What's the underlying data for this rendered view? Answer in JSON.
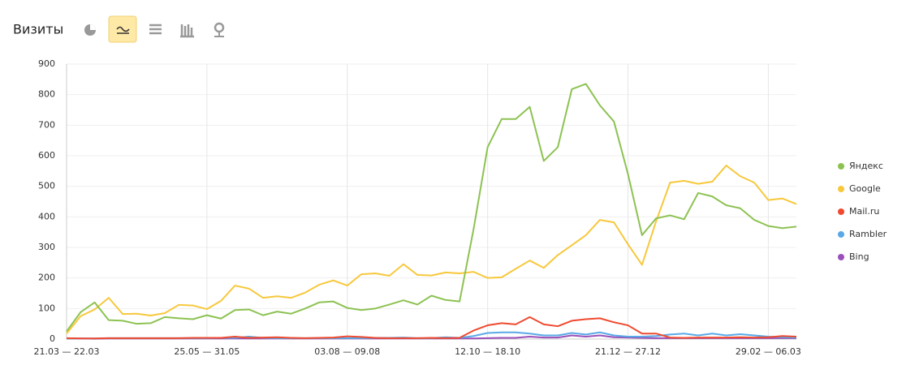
{
  "header": {
    "title": "Визиты"
  },
  "chart_data": {
    "type": "line",
    "categories": [
      "21.03 — 22.03",
      null,
      null,
      null,
      null,
      null,
      null,
      null,
      null,
      null,
      "25.05 — 31.05",
      null,
      null,
      null,
      null,
      null,
      null,
      null,
      null,
      null,
      "03.08 — 09.08",
      null,
      null,
      null,
      null,
      null,
      null,
      null,
      null,
      null,
      "12.10 — 18.10",
      null,
      null,
      null,
      null,
      null,
      null,
      null,
      null,
      null,
      "21.12 — 27.12",
      null,
      null,
      null,
      null,
      null,
      null,
      null,
      null,
      null,
      "29.02 — 06.03",
      null,
      null
    ],
    "series": [
      {
        "name": "Яндекс",
        "color": "#8dc252",
        "values": [
          25,
          88,
          120,
          62,
          60,
          50,
          52,
          72,
          68,
          65,
          78,
          67,
          95,
          97,
          78,
          90,
          83,
          100,
          120,
          123,
          102,
          95,
          100,
          113,
          127,
          113,
          142,
          128,
          123,
          360,
          628,
          720,
          720,
          760,
          583,
          628,
          818,
          835,
          765,
          712,
          540,
          340,
          395,
          405,
          392,
          478,
          467,
          438,
          428,
          390,
          370,
          363,
          368
        ]
      },
      {
        "name": "Google",
        "color": "#f7c83c",
        "values": [
          18,
          75,
          97,
          135,
          82,
          83,
          77,
          85,
          112,
          110,
          98,
          125,
          175,
          165,
          135,
          140,
          135,
          152,
          178,
          192,
          175,
          212,
          215,
          207,
          245,
          210,
          208,
          218,
          215,
          220,
          200,
          202,
          230,
          257,
          233,
          275,
          307,
          340,
          390,
          382,
          310,
          243,
          385,
          512,
          518,
          508,
          515,
          568,
          533,
          512,
          455,
          460,
          442
        ]
      },
      {
        "name": "Mail.ru",
        "color": "#ef4a2f",
        "values": [
          3,
          2,
          2,
          3,
          3,
          3,
          3,
          3,
          3,
          4,
          4,
          4,
          8,
          4,
          5,
          6,
          4,
          3,
          4,
          5,
          9,
          7,
          4,
          3,
          3,
          3,
          4,
          3,
          4,
          28,
          45,
          52,
          48,
          72,
          48,
          42,
          60,
          65,
          68,
          55,
          45,
          18,
          18,
          5,
          4,
          5,
          5,
          5,
          6,
          5,
          6,
          10,
          8
        ]
      },
      {
        "name": "Rambler",
        "color": "#5aa9e6",
        "values": [
          2,
          2,
          2,
          3,
          3,
          3,
          3,
          3,
          3,
          3,
          3,
          4,
          4,
          8,
          4,
          3,
          3,
          3,
          3,
          3,
          3,
          3,
          4,
          4,
          5,
          3,
          3,
          6,
          4,
          10,
          20,
          22,
          22,
          18,
          12,
          12,
          20,
          15,
          22,
          12,
          8,
          8,
          10,
          15,
          18,
          12,
          18,
          12,
          16,
          12,
          8,
          6,
          5
        ]
      },
      {
        "name": "Bing",
        "color": "#9b4fb8",
        "values": [
          2,
          2,
          1,
          2,
          2,
          2,
          2,
          2,
          2,
          2,
          2,
          2,
          2,
          2,
          2,
          2,
          2,
          2,
          2,
          2,
          2,
          2,
          2,
          2,
          2,
          2,
          2,
          2,
          2,
          2,
          3,
          4,
          4,
          8,
          5,
          5,
          12,
          8,
          12,
          6,
          5,
          4,
          3,
          3,
          3,
          3,
          3,
          3,
          3,
          3,
          3,
          3,
          3
        ]
      }
    ],
    "ylim": [
      0,
      900
    ],
    "yticks": [
      0,
      100,
      200,
      300,
      400,
      500,
      600,
      700,
      800,
      900
    ],
    "grid": true,
    "legend": "right"
  }
}
